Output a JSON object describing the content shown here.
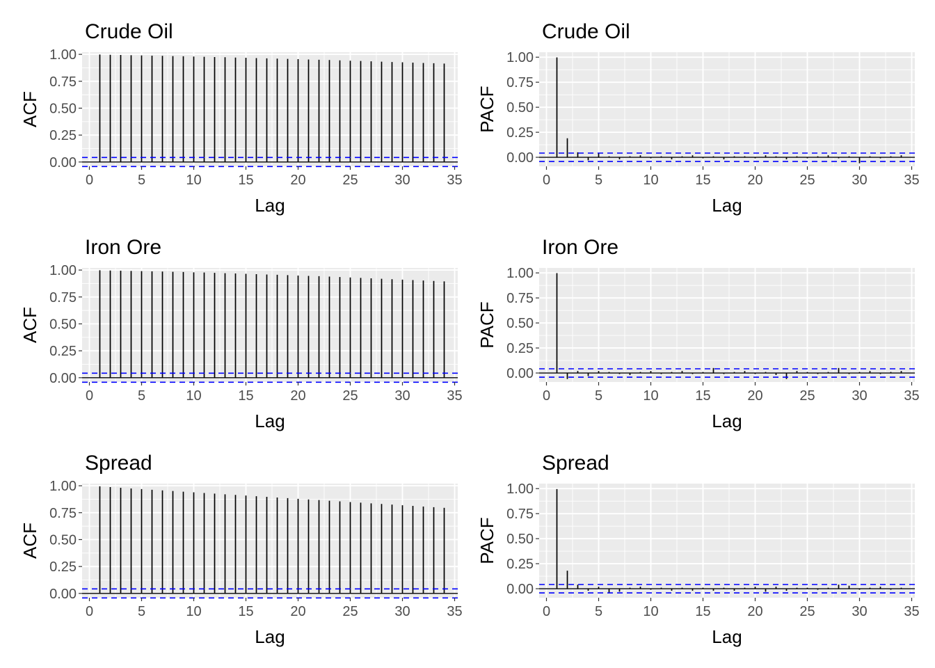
{
  "chart_data": [
    {
      "type": "bar",
      "title": "Crude Oil",
      "xlabel": "Lag",
      "ylabel": "ACF",
      "x_ticks": [
        "0",
        "5",
        "10",
        "15",
        "20",
        "25",
        "30",
        "35"
      ],
      "y_ticks": [
        "0.00",
        "0.25",
        "0.50",
        "0.75",
        "1.00"
      ],
      "xlim": [
        -0.7,
        35.3
      ],
      "ylim": [
        -0.04,
        1.02
      ],
      "ci": 0.042,
      "ci_color": "#0000ff",
      "x": [
        1,
        2,
        3,
        4,
        5,
        6,
        7,
        8,
        9,
        10,
        11,
        12,
        13,
        14,
        15,
        16,
        17,
        18,
        19,
        20,
        21,
        22,
        23,
        24,
        25,
        26,
        27,
        28,
        29,
        30,
        31,
        32,
        33,
        34
      ],
      "values": [
        0.998,
        0.996,
        0.994,
        0.992,
        0.99,
        0.988,
        0.986,
        0.984,
        0.982,
        0.98,
        0.977,
        0.975,
        0.973,
        0.97,
        0.968,
        0.965,
        0.963,
        0.96,
        0.958,
        0.955,
        0.952,
        0.95,
        0.947,
        0.944,
        0.941,
        0.938,
        0.935,
        0.932,
        0.929,
        0.926,
        0.923,
        0.92,
        0.917,
        0.914
      ]
    },
    {
      "type": "bar",
      "title": "Crude Oil",
      "xlabel": "Lag",
      "ylabel": "PACF",
      "x_ticks": [
        "0",
        "5",
        "10",
        "15",
        "20",
        "25",
        "30",
        "35"
      ],
      "y_ticks": [
        "0.00",
        "0.25",
        "0.50",
        "0.75",
        "1.00"
      ],
      "xlim": [
        -0.7,
        35.3
      ],
      "ylim": [
        -0.09,
        1.05
      ],
      "ci": 0.042,
      "ci_color": "#0000ff",
      "x": [
        1,
        2,
        3,
        4,
        5,
        6,
        7,
        8,
        9,
        10,
        11,
        12,
        13,
        14,
        15,
        16,
        17,
        18,
        19,
        20,
        21,
        22,
        23,
        24,
        25,
        26,
        27,
        28,
        29,
        30,
        31,
        32,
        33,
        34
      ],
      "values": [
        0.998,
        0.19,
        0.05,
        -0.03,
        0.04,
        0.01,
        -0.02,
        0.01,
        0.02,
        -0.01,
        0.01,
        -0.02,
        0.01,
        0.02,
        -0.01,
        0.01,
        -0.02,
        0.01,
        0.01,
        -0.01,
        0.02,
        0.01,
        -0.02,
        0.01,
        -0.01,
        0.01,
        0.02,
        -0.01,
        0.01,
        -0.06,
        0.01,
        -0.01,
        0.01,
        0.02
      ]
    },
    {
      "type": "bar",
      "title": "Iron Ore",
      "xlabel": "Lag",
      "ylabel": "ACF",
      "x_ticks": [
        "0",
        "5",
        "10",
        "15",
        "20",
        "25",
        "30",
        "35"
      ],
      "y_ticks": [
        "0.00",
        "0.25",
        "0.50",
        "0.75",
        "1.00"
      ],
      "xlim": [
        -0.7,
        35.3
      ],
      "ylim": [
        -0.04,
        1.02
      ],
      "ci": 0.042,
      "ci_color": "#0000ff",
      "x": [
        1,
        2,
        3,
        4,
        5,
        6,
        7,
        8,
        9,
        10,
        11,
        12,
        13,
        14,
        15,
        16,
        17,
        18,
        19,
        20,
        21,
        22,
        23,
        24,
        25,
        26,
        27,
        28,
        29,
        30,
        31,
        32,
        33,
        34
      ],
      "values": [
        0.998,
        0.996,
        0.994,
        0.992,
        0.99,
        0.988,
        0.986,
        0.984,
        0.982,
        0.979,
        0.977,
        0.974,
        0.971,
        0.968,
        0.965,
        0.962,
        0.959,
        0.956,
        0.953,
        0.949,
        0.946,
        0.943,
        0.939,
        0.935,
        0.931,
        0.927,
        0.923,
        0.919,
        0.915,
        0.911,
        0.907,
        0.903,
        0.899,
        0.895
      ]
    },
    {
      "type": "bar",
      "title": "Iron Ore",
      "xlabel": "Lag",
      "ylabel": "PACF",
      "x_ticks": [
        "0",
        "5",
        "10",
        "15",
        "20",
        "25",
        "30",
        "35"
      ],
      "y_ticks": [
        "0.00",
        "0.25",
        "0.50",
        "0.75",
        "1.00"
      ],
      "xlim": [
        -0.7,
        35.3
      ],
      "ylim": [
        -0.09,
        1.05
      ],
      "ci": 0.042,
      "ci_color": "#0000ff",
      "x": [
        1,
        2,
        3,
        4,
        5,
        6,
        7,
        8,
        9,
        10,
        11,
        12,
        13,
        14,
        15,
        16,
        17,
        18,
        19,
        20,
        21,
        22,
        23,
        24,
        25,
        26,
        27,
        28,
        29,
        30,
        31,
        32,
        33,
        34
      ],
      "values": [
        0.998,
        -0.06,
        0.02,
        -0.03,
        0.02,
        0.01,
        -0.01,
        -0.02,
        0.01,
        0.02,
        -0.01,
        0.01,
        0.02,
        -0.01,
        0.01,
        0.05,
        -0.01,
        0.01,
        0.02,
        -0.01,
        0.01,
        -0.02,
        -0.06,
        0.02,
        0.01,
        -0.01,
        0.01,
        0.05,
        -0.01,
        0.01,
        0.02,
        -0.01,
        0.01,
        0.02
      ]
    },
    {
      "type": "bar",
      "title": "Spread",
      "xlabel": "Lag",
      "ylabel": "ACF",
      "x_ticks": [
        "0",
        "5",
        "10",
        "15",
        "20",
        "25",
        "30",
        "35"
      ],
      "y_ticks": [
        "0.00",
        "0.25",
        "0.50",
        "0.75",
        "1.00"
      ],
      "xlim": [
        -0.7,
        35.3
      ],
      "ylim": [
        -0.04,
        1.02
      ],
      "ci": 0.042,
      "ci_color": "#0000ff",
      "x": [
        1,
        2,
        3,
        4,
        5,
        6,
        7,
        8,
        9,
        10,
        11,
        12,
        13,
        14,
        15,
        16,
        17,
        18,
        19,
        20,
        21,
        22,
        23,
        24,
        25,
        26,
        27,
        28,
        29,
        30,
        31,
        32,
        33,
        34
      ],
      "values": [
        0.995,
        0.988,
        0.981,
        0.975,
        0.969,
        0.963,
        0.957,
        0.951,
        0.945,
        0.939,
        0.933,
        0.927,
        0.921,
        0.915,
        0.909,
        0.903,
        0.897,
        0.891,
        0.885,
        0.879,
        0.873,
        0.867,
        0.861,
        0.855,
        0.849,
        0.843,
        0.837,
        0.831,
        0.825,
        0.819,
        0.813,
        0.807,
        0.801,
        0.795
      ]
    },
    {
      "type": "bar",
      "title": "Spread",
      "xlabel": "Lag",
      "ylabel": "PACF",
      "x_ticks": [
        "0",
        "5",
        "10",
        "15",
        "20",
        "25",
        "30",
        "35"
      ],
      "y_ticks": [
        "0.00",
        "0.25",
        "0.50",
        "0.75",
        "1.00"
      ],
      "xlim": [
        -0.7,
        35.3
      ],
      "ylim": [
        -0.09,
        1.05
      ],
      "ci": 0.042,
      "ci_color": "#0000ff",
      "x": [
        1,
        2,
        3,
        4,
        5,
        6,
        7,
        8,
        9,
        10,
        11,
        12,
        13,
        14,
        15,
        16,
        17,
        18,
        19,
        20,
        21,
        22,
        23,
        24,
        25,
        26,
        27,
        28,
        29,
        30,
        31,
        32,
        33,
        34
      ],
      "values": [
        0.995,
        0.18,
        0.04,
        -0.02,
        0.02,
        -0.04,
        -0.03,
        0.01,
        0.02,
        -0.01,
        0.01,
        -0.02,
        0.01,
        -0.02,
        0.01,
        -0.02,
        0.01,
        -0.02,
        0.01,
        0.02,
        -0.03,
        0.02,
        -0.02,
        0.01,
        0.01,
        -0.01,
        0.01,
        0.04,
        0.03,
        -0.01,
        0.01,
        0.02,
        -0.01,
        0.01
      ]
    }
  ]
}
